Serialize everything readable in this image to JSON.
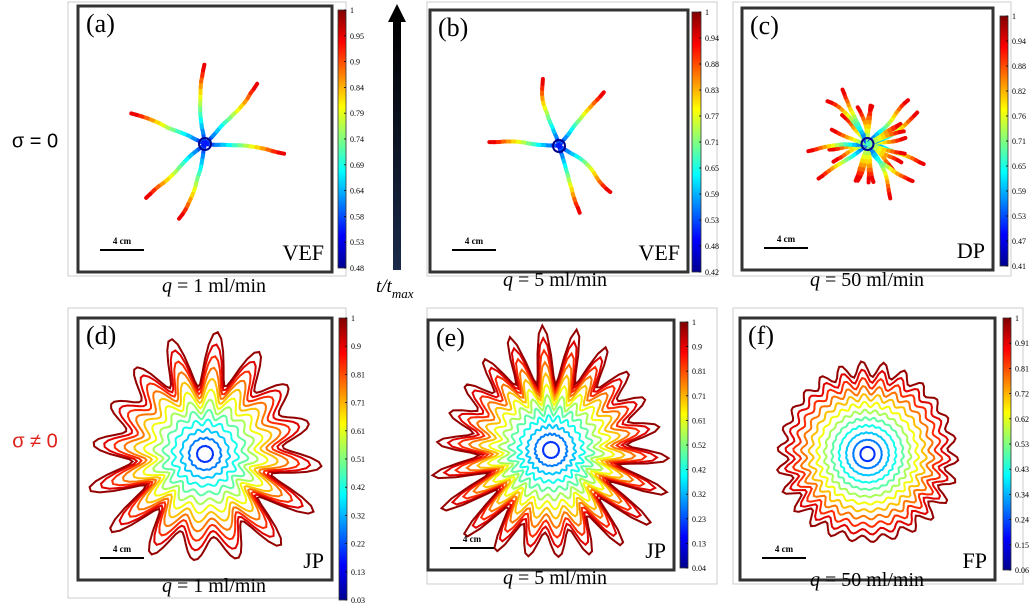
{
  "row_labels": [
    "σ = 0",
    "σ ≠ 0"
  ],
  "time_axis": {
    "base": "t/t",
    "sub": "max"
  },
  "panels": [
    {
      "label": "(a)",
      "pattern": "VEF",
      "scale": "4 cm",
      "q": "q",
      "rate": "=  1 ml/min",
      "colorbar": [
        "1",
        "0.95",
        "0.9",
        "0.84",
        "0.79",
        "0.74",
        "0.69",
        "0.64",
        "0.58",
        "0.53",
        "0.48"
      ]
    },
    {
      "label": "(b)",
      "pattern": "VEF",
      "scale": "4 cm",
      "q": "q",
      "rate": "=  5 ml/min",
      "colorbar": [
        "1",
        "0.94",
        "0.88",
        "0.83",
        "0.77",
        "0.71",
        "0.65",
        "0.59",
        "0.53",
        "0.48",
        "0.42"
      ]
    },
    {
      "label": "(c)",
      "pattern": "DP",
      "scale": "4 cm",
      "q": "q",
      "rate": "=  50 ml/min",
      "colorbar": [
        "1",
        "0.94",
        "0.88",
        "0.82",
        "0.76",
        "0.71",
        "0.65",
        "0.59",
        "0.53",
        "0.47",
        "0.41"
      ]
    },
    {
      "label": "(d)",
      "pattern": "JP",
      "scale": "4 cm",
      "q": "q",
      "rate": "=  1 ml/min",
      "colorbar": [
        "1",
        "0.9",
        "0.81",
        "0.71",
        "0.61",
        "0.51",
        "0.42",
        "0.32",
        "0.22",
        "0.13",
        "0.03"
      ]
    },
    {
      "label": "(e)",
      "pattern": "JP",
      "scale": "4 cm",
      "q": "q",
      "rate": "=  5 ml/min",
      "colorbar": [
        "1",
        "0.9",
        "0.81",
        "0.71",
        "0.61",
        "0.52",
        "0.42",
        "0.32",
        "0.23",
        "0.13",
        "0.04"
      ]
    },
    {
      "label": "(f)",
      "pattern": "FP",
      "scale": "4 cm",
      "q": "q",
      "rate": "=  50 ml/min",
      "colorbar": [
        "1",
        "0.91",
        "0.81",
        "0.72",
        "0.62",
        "0.53",
        "0.43",
        "0.34",
        "0.24",
        "0.15",
        "0.06"
      ]
    }
  ]
}
